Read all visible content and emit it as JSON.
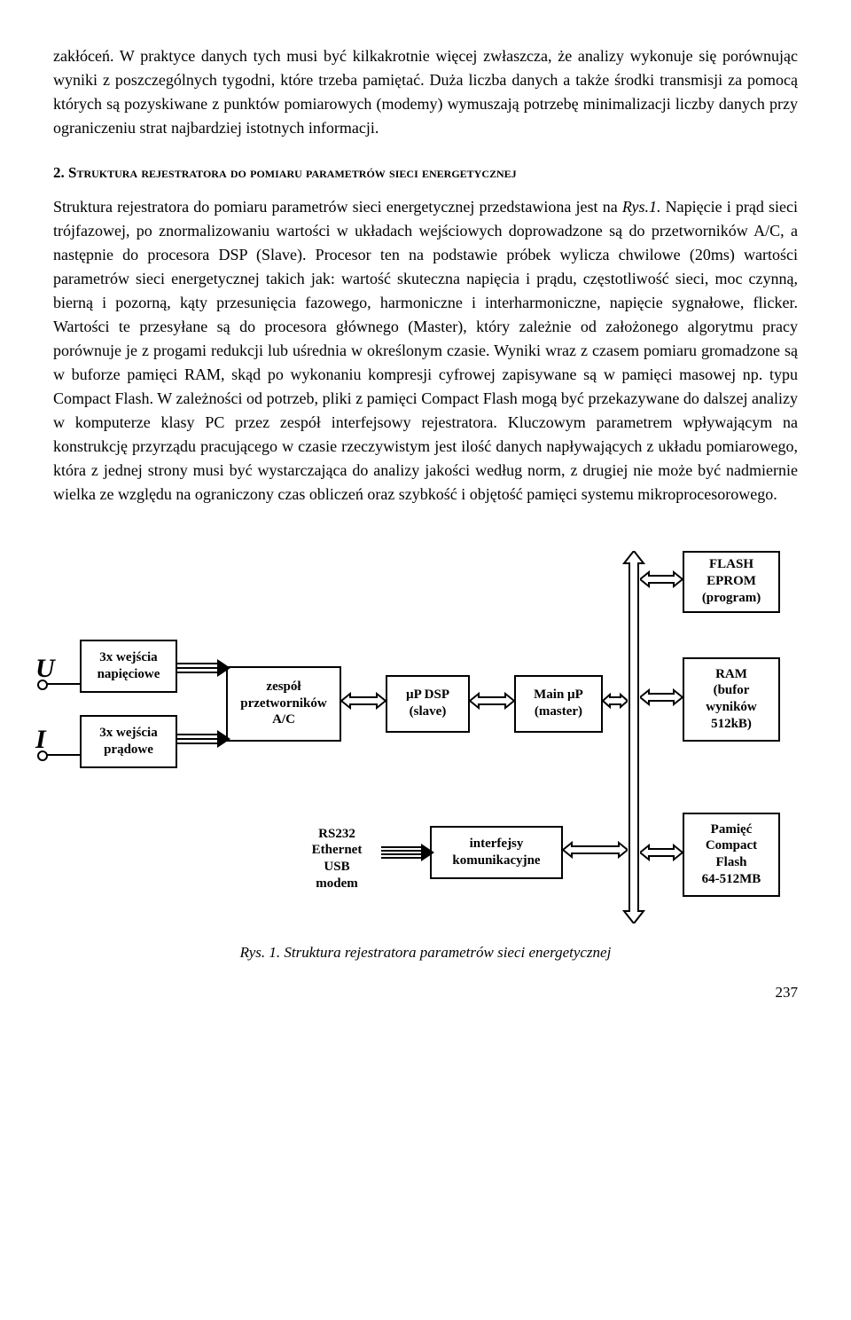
{
  "para1": "zakłóceń. W praktyce danych tych musi być kilkakrotnie więcej zwłaszcza, że analizy wykonuje się porównując wyniki z poszczególnych tygodni, które trzeba pamiętać. Duża liczba danych a także środki transmisji za pomocą których są pozyskiwane z punktów pomiarowych (modemy) wymuszają potrzebę minimalizacji liczby danych przy ograniczeniu strat najbardziej istotnych informacji.",
  "section": {
    "number": "2.",
    "title": "Struktura rejestratora do pomiaru parametrów sieci energetycznej"
  },
  "para2a": "Struktura rejestratora do pomiaru parametrów sieci energetycznej przedstawiona jest na ",
  "para2ref": "Rys.1.",
  "para2b": " Napięcie i prąd sieci trójfazowej, po znormalizowaniu wartości w układach wejściowych doprowadzone są do przetworników A/C, a następnie do procesora DSP (Slave). Procesor ten na podstawie próbek wylicza chwilowe (20ms) wartości parametrów sieci energetycznej takich jak: wartość skuteczna napięcia i prądu, częstotliwość sieci, moc czynną, bierną i pozorną, kąty przesunięcia fazowego, harmoniczne i interharmoniczne, napięcie sygnałowe, flicker. Wartości te przesyłane są do procesora głównego (Master), który zależnie od założonego algorytmu pracy porównuje je z progami redukcji lub uśrednia w określonym czasie. Wyniki wraz z czasem pomiaru gromadzone są w buforze pamięci RAM, skąd po wykonaniu kompresji cyfrowej zapisywane są w pamięci masowej np. typu Compact Flash. W zależności od potrzeb, pliki z pamięci Compact Flash mogą być przekazywane do dalszej analizy w komputerze klasy PC przez zespół interfejsowy rejestratora. Kluczowym parametrem wpływającym na konstrukcję przyrządu pracującego w czasie rzeczywistym jest ilość danych napływających z układu pomiarowego, która z jednej strony musi być wystarczająca do analizy jakości według norm, z drugiej nie może być nadmiernie wielka ze względu na ograniczony czas obliczeń oraz szybkość i objętość pamięci systemu mikroprocesorowego.",
  "diagram": {
    "U": "U",
    "I": "I",
    "in_voltage": "3x wejścia\nnapięciowe",
    "in_current": "3x wejścia\nprądowe",
    "adc": "zespół\nprzetworników\nA/C",
    "dsp": "µP DSP\n(slave)",
    "main": "Main µP\n(master)",
    "flash": "FLASH\nEPROM\n(program)",
    "ram": "RAM\n(bufor\nwyników\n512kB)",
    "rs": "RS232\nEthernet\nUSB\nmodem",
    "ifc": "interfejsy\nkomunikacyjne",
    "cflash": "Pamięć\nCompact\nFlash\n64-512MB"
  },
  "caption": "Rys. 1. Struktura rejestratora parametrów sieci energetycznej",
  "page": "237"
}
